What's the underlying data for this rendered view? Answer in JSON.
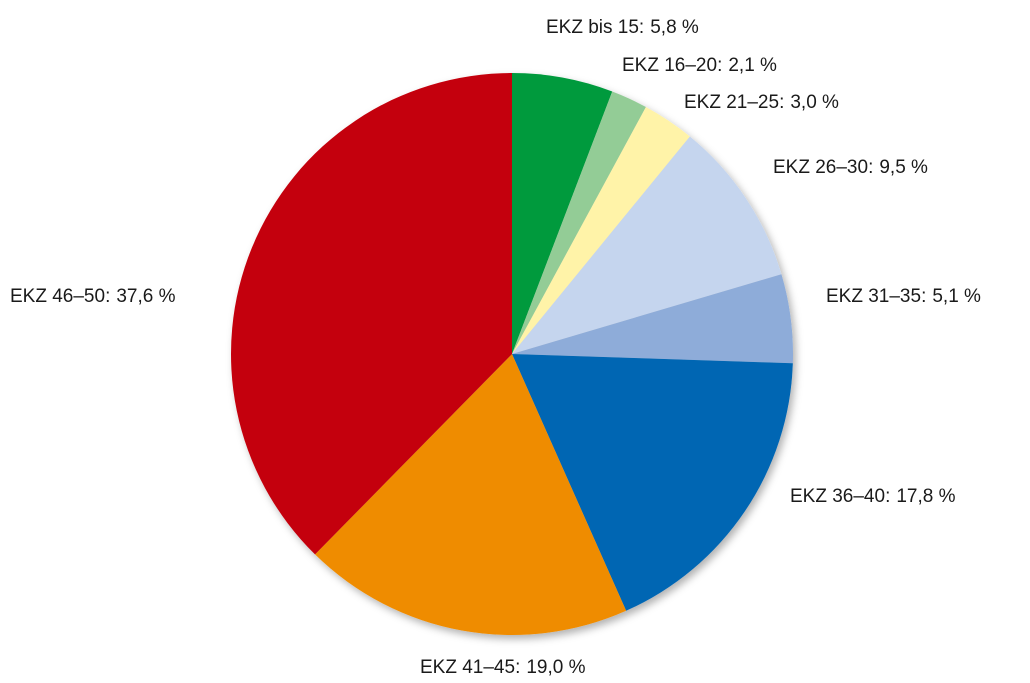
{
  "chart_data": {
    "type": "pie",
    "categories": [
      "EKZ bis 15:",
      "EKZ 16–20:",
      "EKZ 21–25:",
      "EKZ 26–30:",
      "EKZ 31–35:",
      "EKZ 36–40:",
      "EKZ 41–45:",
      "EKZ 46–50:"
    ],
    "values": [
      5.8,
      2.1,
      3.0,
      9.5,
      5.1,
      17.8,
      19.0,
      37.6
    ],
    "value_labels": [
      "5,8 %",
      "2,1 %",
      "3,0 %",
      "9,5 %",
      "5,1 %",
      "17,8 %",
      "19,0 %",
      "37,6 %"
    ],
    "colors": [
      "#009a3e",
      "#93cc96",
      "#fff3a8",
      "#c5d5ee",
      "#8eacd9",
      "#0066b3",
      "#ef8c00",
      "#c4000b"
    ]
  }
}
